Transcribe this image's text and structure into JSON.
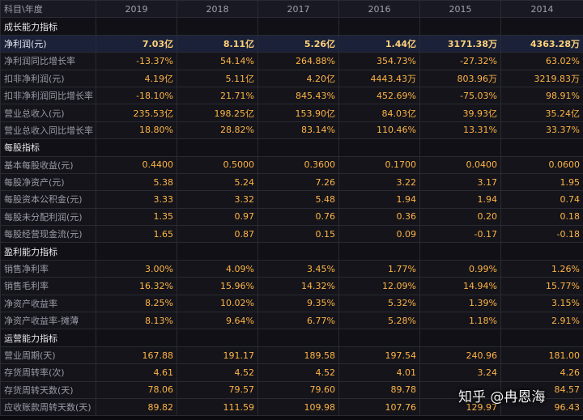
{
  "header": {
    "label": "科目\\年度",
    "years": [
      "2019",
      "2018",
      "2017",
      "2016",
      "2015",
      "2014"
    ]
  },
  "rows": [
    {
      "type": "section",
      "label": "成长能力指标"
    },
    {
      "type": "data",
      "label": "净利润(元)",
      "highlight": true,
      "values": [
        "7.03亿",
        "8.11亿",
        "5.26亿",
        "1.44亿",
        "3171.38万",
        "4363.28万"
      ]
    },
    {
      "type": "data",
      "label": "净利润同比增长率",
      "values": [
        "-13.37%",
        "54.14%",
        "264.88%",
        "354.73%",
        "-27.32%",
        "63.02%"
      ]
    },
    {
      "type": "data",
      "label": "扣非净利润(元)",
      "values": [
        "4.19亿",
        "5.11亿",
        "4.20亿",
        "4443.43万",
        "803.96万",
        "3219.83万"
      ]
    },
    {
      "type": "data",
      "label": "扣非净利润同比增长率",
      "values": [
        "-18.10%",
        "21.71%",
        "845.43%",
        "452.69%",
        "-75.03%",
        "98.91%"
      ]
    },
    {
      "type": "data",
      "label": "营业总收入(元)",
      "values": [
        "235.53亿",
        "198.25亿",
        "153.90亿",
        "84.03亿",
        "39.93亿",
        "35.24亿"
      ]
    },
    {
      "type": "data",
      "label": "营业总收入同比增长率",
      "values": [
        "18.80%",
        "28.82%",
        "83.14%",
        "110.46%",
        "13.31%",
        "33.37%"
      ]
    },
    {
      "type": "section",
      "label": "每股指标"
    },
    {
      "type": "data",
      "label": "基本每股收益(元)",
      "values": [
        "0.4400",
        "0.5000",
        "0.3600",
        "0.1700",
        "0.0400",
        "0.0600"
      ]
    },
    {
      "type": "data",
      "label": "每股净资产(元)",
      "values": [
        "5.38",
        "5.24",
        "7.26",
        "3.22",
        "3.17",
        "1.95"
      ]
    },
    {
      "type": "data",
      "label": "每股资本公积金(元)",
      "values": [
        "3.33",
        "3.32",
        "5.48",
        "1.94",
        "1.94",
        "0.74"
      ]
    },
    {
      "type": "data",
      "label": "每股未分配利润(元)",
      "values": [
        "1.35",
        "0.97",
        "0.76",
        "0.36",
        "0.20",
        "0.18"
      ]
    },
    {
      "type": "data",
      "label": "每股经营现金流(元)",
      "values": [
        "1.65",
        "0.87",
        "0.15",
        "0.09",
        "-0.17",
        "-0.18"
      ]
    },
    {
      "type": "section",
      "label": "盈利能力指标"
    },
    {
      "type": "data",
      "label": "销售净利率",
      "values": [
        "3.00%",
        "4.09%",
        "3.45%",
        "1.77%",
        "0.99%",
        "1.26%"
      ]
    },
    {
      "type": "data",
      "label": "销售毛利率",
      "values": [
        "16.32%",
        "15.96%",
        "14.32%",
        "12.09%",
        "14.94%",
        "15.77%"
      ]
    },
    {
      "type": "data",
      "label": "净资产收益率",
      "values": [
        "8.25%",
        "10.02%",
        "9.35%",
        "5.32%",
        "1.39%",
        "3.15%"
      ]
    },
    {
      "type": "data",
      "label": "净资产收益率-摊薄",
      "values": [
        "8.13%",
        "9.64%",
        "6.77%",
        "5.28%",
        "1.18%",
        "2.91%"
      ]
    },
    {
      "type": "section",
      "label": "运营能力指标"
    },
    {
      "type": "data",
      "label": "营业周期(天)",
      "values": [
        "167.88",
        "191.17",
        "189.58",
        "197.54",
        "240.96",
        "181.00"
      ]
    },
    {
      "type": "data",
      "label": "存货周转率(次)",
      "values": [
        "4.61",
        "4.52",
        "4.52",
        "4.01",
        "3.24",
        "4.26"
      ]
    },
    {
      "type": "data",
      "label": "存货周转天数(天)",
      "values": [
        "78.06",
        "79.57",
        "79.60",
        "89.78",
        "",
        "84.57"
      ]
    },
    {
      "type": "data",
      "label": "应收账款周转天数(天)",
      "values": [
        "89.82",
        "111.59",
        "109.98",
        "107.76",
        "129.97",
        "96.43"
      ]
    }
  ],
  "watermark": "知乎 @冉恩海",
  "colors": {
    "value": "#ffb445",
    "value_highlight": "#ffd27a",
    "highlight_row_bg": "#1a2138",
    "background": "#14141a"
  }
}
